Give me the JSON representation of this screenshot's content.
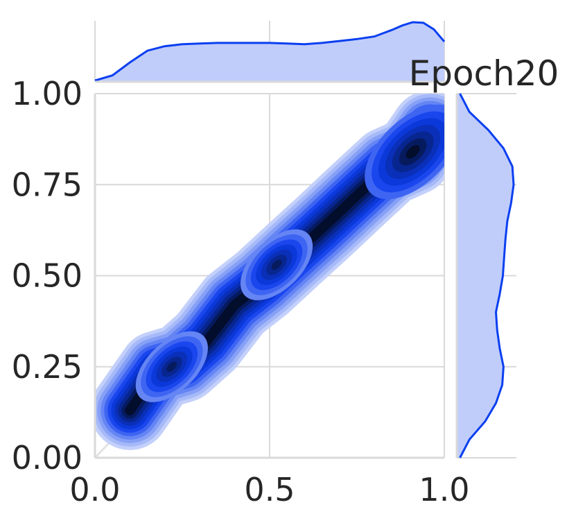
{
  "chart_data": {
    "type": "kde_jointplot",
    "title": "Epoch20",
    "xlabel": "",
    "ylabel": "",
    "xlim": [
      0.0,
      1.0
    ],
    "ylim": [
      0.0,
      1.0
    ],
    "xticks": [
      0.0,
      0.5,
      1.0
    ],
    "xtick_labels": [
      "0.0",
      "0.5",
      "1.0"
    ],
    "yticks": [
      0.0,
      0.25,
      0.5,
      0.75,
      1.0
    ],
    "ytick_labels": [
      "0.00",
      "0.25",
      "0.50",
      "0.75",
      "1.00"
    ],
    "grid": true,
    "diagonal_reference": {
      "x": [
        0.0,
        1.0
      ],
      "y": [
        0.0,
        1.0
      ]
    },
    "colors": {
      "line": "#0a3ff0",
      "fill": "#c0cdfb",
      "levels": [
        "#c3d0fb",
        "#a6b9f8",
        "#86a0f6",
        "#6585f4",
        "#3e64f2",
        "#1a46ee",
        "#0b38d9",
        "#0a2fb8",
        "#08268f",
        "#061a5e",
        "#030d2c"
      ],
      "grid": "#d9d9d9",
      "diagonal": "#e3e3e3"
    },
    "density_path": [
      [
        0.1,
        0.13
      ],
      [
        0.18,
        0.24
      ],
      [
        0.25,
        0.26
      ],
      [
        0.32,
        0.32
      ],
      [
        0.4,
        0.42
      ],
      [
        0.48,
        0.48
      ],
      [
        0.57,
        0.56
      ],
      [
        0.65,
        0.63
      ],
      [
        0.75,
        0.72
      ],
      [
        0.84,
        0.8
      ],
      [
        0.91,
        0.83
      ],
      [
        0.96,
        0.9
      ]
    ],
    "density_modes": [
      [
        0.22,
        0.25
      ],
      [
        0.52,
        0.53
      ],
      [
        0.91,
        0.84
      ]
    ],
    "marginal_x": {
      "x": [
        0.0,
        0.05,
        0.1,
        0.15,
        0.2,
        0.25,
        0.3,
        0.35,
        0.4,
        0.45,
        0.5,
        0.55,
        0.6,
        0.65,
        0.7,
        0.75,
        0.8,
        0.85,
        0.88,
        0.91,
        0.94,
        0.97,
        1.0
      ],
      "density": [
        0.02,
        0.1,
        0.3,
        0.48,
        0.55,
        0.58,
        0.59,
        0.6,
        0.6,
        0.6,
        0.6,
        0.59,
        0.58,
        0.6,
        0.63,
        0.66,
        0.7,
        0.8,
        0.87,
        0.92,
        0.91,
        0.81,
        0.62
      ]
    },
    "marginal_y": {
      "y": [
        0.0,
        0.05,
        0.1,
        0.15,
        0.2,
        0.25,
        0.3,
        0.35,
        0.4,
        0.45,
        0.5,
        0.55,
        0.6,
        0.65,
        0.7,
        0.75,
        0.8,
        0.85,
        0.9,
        0.95,
        1.0
      ],
      "density": [
        0.05,
        0.2,
        0.45,
        0.62,
        0.72,
        0.74,
        0.68,
        0.64,
        0.62,
        0.68,
        0.73,
        0.75,
        0.77,
        0.8,
        0.86,
        0.9,
        0.88,
        0.74,
        0.5,
        0.2,
        0.05
      ]
    }
  }
}
